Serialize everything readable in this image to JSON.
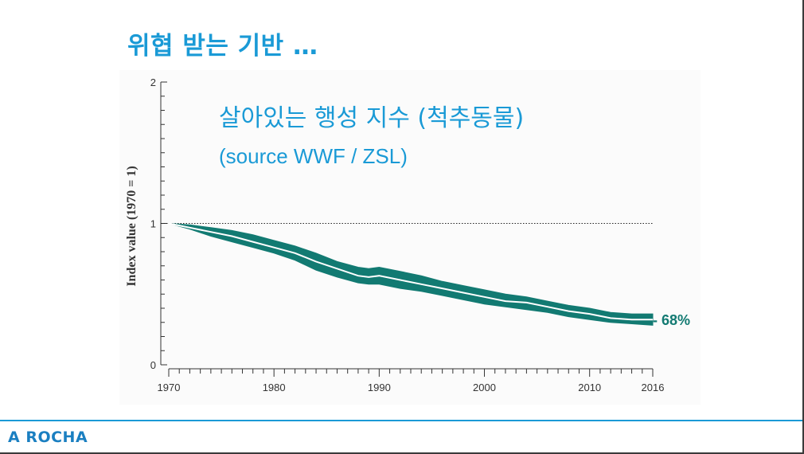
{
  "slide": {
    "title": "위협 받는 기반 …",
    "brand": "A ROCHA"
  },
  "chart_data": {
    "type": "line",
    "title": "살아있는 행성 지수 (척추동물)",
    "subtitle": "(source WWF / ZSL)",
    "xlabel": "",
    "ylabel": "Index value (1970 = 1)",
    "xlim": [
      1970,
      2016
    ],
    "ylim": [
      0,
      2
    ],
    "y_ticks": [
      "0",
      "1",
      "2"
    ],
    "x_ticks": [
      "1970",
      "1980",
      "1990",
      "2000",
      "2010",
      "2016"
    ],
    "reference_line": 1,
    "end_annotation": "- 68%",
    "colors": {
      "band": "#127a72",
      "line": "#ffffff",
      "text": "#1a9ad6"
    },
    "series": [
      {
        "x": [
          1970,
          1972,
          1974,
          1976,
          1978,
          1980,
          1982,
          1984,
          1986,
          1988,
          1989,
          1990,
          1992,
          1994,
          1996,
          1998,
          2000,
          2002,
          2004,
          2006,
          2008,
          2010,
          2012,
          2014,
          2016
        ],
        "y": [
          1.0,
          0.97,
          0.94,
          0.91,
          0.87,
          0.83,
          0.79,
          0.73,
          0.68,
          0.63,
          0.62,
          0.63,
          0.6,
          0.57,
          0.54,
          0.51,
          0.48,
          0.45,
          0.44,
          0.41,
          0.38,
          0.36,
          0.33,
          0.32,
          0.32
        ],
        "lower": [
          1.0,
          0.96,
          0.91,
          0.87,
          0.83,
          0.79,
          0.74,
          0.67,
          0.62,
          0.58,
          0.57,
          0.57,
          0.54,
          0.52,
          0.49,
          0.46,
          0.43,
          0.41,
          0.39,
          0.37,
          0.34,
          0.32,
          0.3,
          0.29,
          0.28
        ],
        "upper": [
          1.0,
          0.99,
          0.97,
          0.95,
          0.92,
          0.88,
          0.84,
          0.79,
          0.73,
          0.69,
          0.68,
          0.69,
          0.66,
          0.63,
          0.59,
          0.56,
          0.53,
          0.5,
          0.48,
          0.45,
          0.42,
          0.4,
          0.37,
          0.36,
          0.36
        ]
      }
    ]
  }
}
